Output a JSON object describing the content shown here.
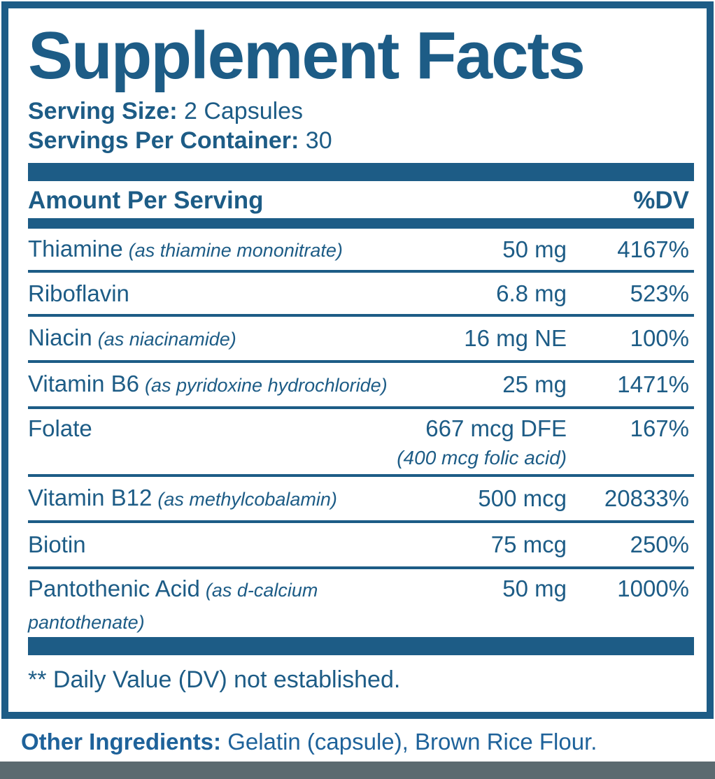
{
  "label": {
    "title": "Supplement Facts",
    "serving_size_label": "Serving Size:",
    "serving_size_value": " 2 Capsules",
    "servings_per_container_label": "Servings Per Container:",
    "servings_per_container_value": " 30",
    "header": {
      "amount_col": "Amount Per Serving",
      "dv_col": "%DV"
    },
    "rows": [
      {
        "name": "Thiamine",
        "qualifier": "(as thiamine mononitrate)",
        "amount": "50 mg",
        "dv": "4167%"
      },
      {
        "name": "Riboflavin",
        "qualifier": "",
        "amount": "6.8 mg",
        "dv": "523%"
      },
      {
        "name": "Niacin",
        "qualifier": "(as niacinamide)",
        "amount": "16 mg NE",
        "dv": "100%"
      },
      {
        "name": "Vitamin B6",
        "qualifier": "(as pyridoxine hydrochloride)",
        "amount": "25 mg",
        "dv": "1471%"
      },
      {
        "name": "Folate",
        "qualifier": "",
        "amount": "667 mcg DFE",
        "amount_note": "(400 mcg folic acid)",
        "dv": "167%"
      },
      {
        "name": "Vitamin B12",
        "qualifier": "(as methylcobalamin)",
        "amount": "500 mcg",
        "dv": "20833%"
      },
      {
        "name": "Biotin",
        "qualifier": "",
        "amount": "75 mcg",
        "dv": "250%"
      },
      {
        "name": "Pantothenic Acid",
        "qualifier": "(as d-calcium pantothenate)",
        "amount": "50 mg",
        "dv": "1000%"
      }
    ],
    "footnote": "** Daily Value (DV) not established.",
    "other_ingredients_label": "Other Ingredients:",
    "other_ingredients_value": " Gelatin (capsule), Brown Rice Flour."
  },
  "colors": {
    "panel_blue": "#1d5c86",
    "footer_text_blue": "#1e629a",
    "bottom_band_gray": "#5b6a70"
  }
}
